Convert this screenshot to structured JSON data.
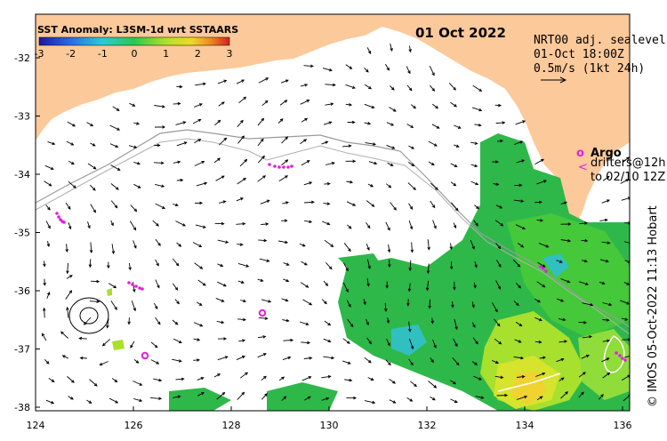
{
  "map": {
    "title": "01 Oct 2022",
    "colorbar": {
      "title": "SST Anomaly: L3SM-1d wrt SSTAARS",
      "ticks": [
        "-3",
        "-2",
        "-1",
        "0",
        "1",
        "2",
        "3"
      ],
      "colors": [
        "#1a1aa0",
        "#2a6fe0",
        "#30c8d8",
        "#2ec84a",
        "#9ee02a",
        "#f0d82a",
        "#ee8a20",
        "#d42020"
      ]
    },
    "info_lines": [
      "NRT00 adj. sealevel",
      "01-Oct 18:00Z",
      "0.5m/s (1kt 24h)"
    ],
    "legend": {
      "argo_marker": "o",
      "argo_label": "Argo",
      "drifter_marker": "<",
      "drifter_label_1": "drifters@12h",
      "drifter_label_2": "to 02/10 12Z"
    },
    "credit": "© IMOS 05-Oct-2022 11:13 Hobart",
    "x_ticks": [
      "124",
      "126",
      "128",
      "130",
      "132",
      "134",
      "136"
    ],
    "y_ticks": [
      "-32",
      "-33",
      "-34",
      "-35",
      "-36",
      "-37",
      "-38"
    ],
    "land_color": "#fcc99a",
    "marker_color": "#e020e0"
  }
}
